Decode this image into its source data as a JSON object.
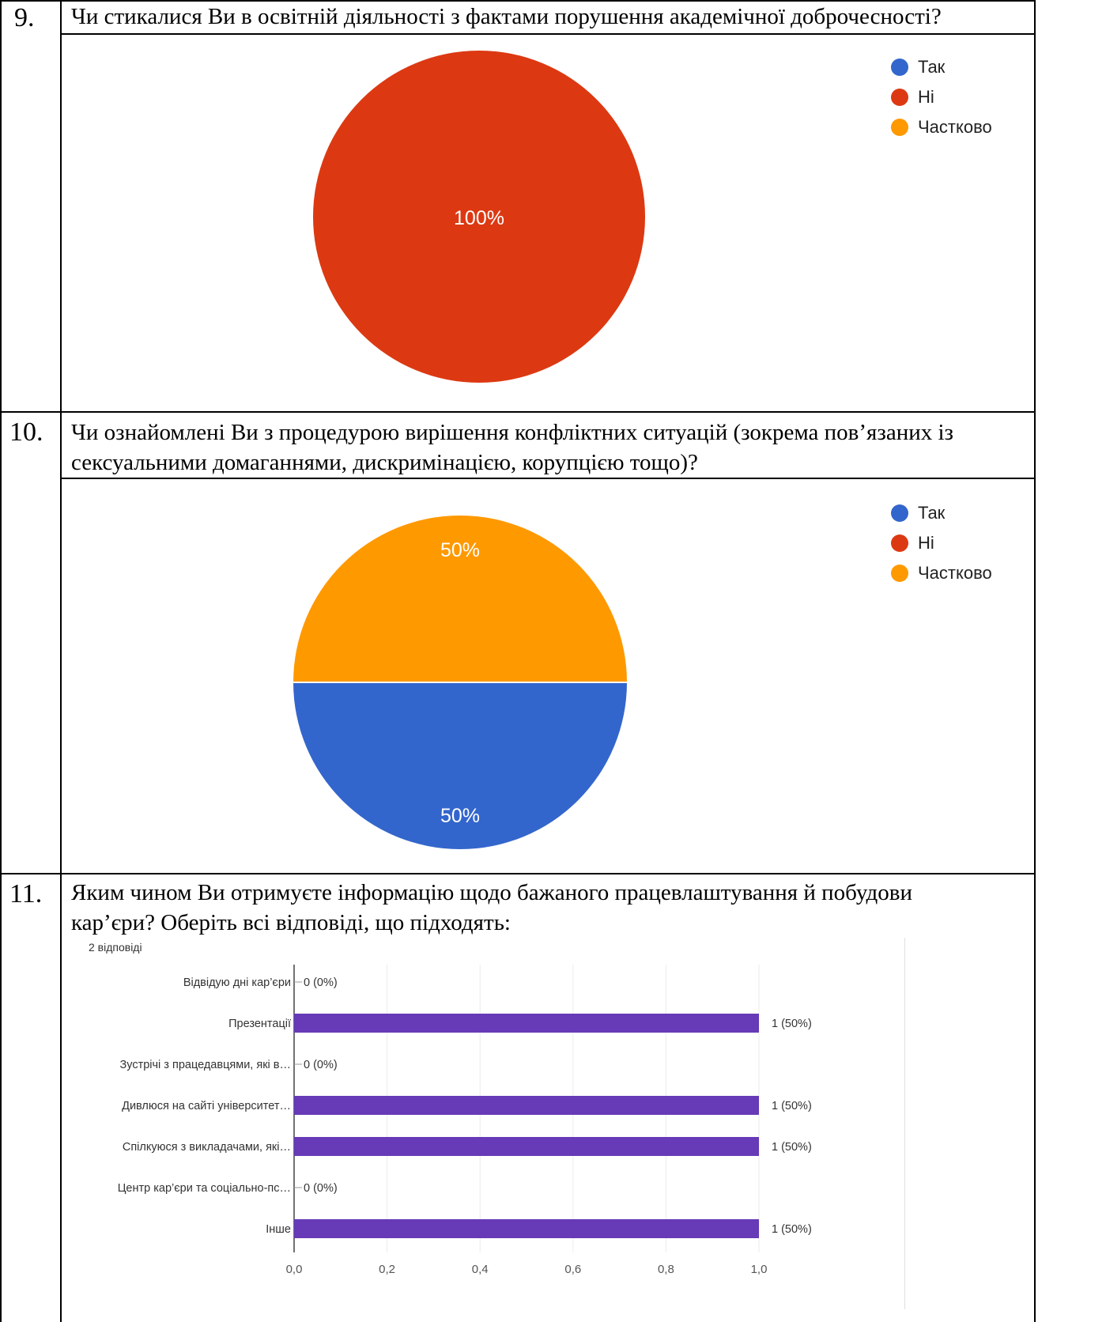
{
  "questions": [
    {
      "number": "9.",
      "text_lines": [
        "Чи стикалися Ви  в освітній діяльності з фактами порушення академічної доброчесності?"
      ]
    },
    {
      "number": "10.",
      "text_lines": [
        "Чи ознайомлені Ви з процедурою вирішення конфліктних ситуацій (зокрема пов’язаних із",
        "сексуальними домаганнями, дискримінацією, корупцією тощо)?"
      ]
    },
    {
      "number": "11.",
      "text_lines": [
        "Яким чином Ви отримуєте інформацію щодо бажаного працевлаштування й побудови",
        "кар’єри? Оберіть всі відповіді, що підходять:"
      ],
      "responses_label": "2 відповіді"
    }
  ],
  "colors": {
    "yes": "#3366cc",
    "no": "#dc3912",
    "partial": "#ff9900",
    "bar": "#673ab7"
  },
  "chart_data": [
    {
      "type": "pie",
      "slices": [
        {
          "label": "Так",
          "value": 0,
          "color": "#3366cc"
        },
        {
          "label": "Ні",
          "value": 100,
          "color": "#dc3912"
        },
        {
          "label": "Частково",
          "value": 0,
          "color": "#ff9900"
        }
      ],
      "data_labels": [
        "100%"
      ],
      "legend": [
        "Так",
        "Ні",
        "Частково"
      ],
      "legend_position": "right"
    },
    {
      "type": "pie",
      "slices": [
        {
          "label": "Так",
          "value": 50,
          "color": "#3366cc"
        },
        {
          "label": "Ні",
          "value": 0,
          "color": "#dc3912"
        },
        {
          "label": "Частково",
          "value": 50,
          "color": "#ff9900"
        }
      ],
      "data_labels": [
        "50%",
        "50%"
      ],
      "legend": [
        "Так",
        "Ні",
        "Частково"
      ],
      "legend_position": "right"
    },
    {
      "type": "bar",
      "orientation": "horizontal",
      "categories": [
        "Відвідую дні кар’єри",
        "Презентації",
        "Зустрічі з працедавцями, які в…",
        "Дивлюся на сайті університет…",
        "Спілкуюся з викладачами, які…",
        "Центр кар’єри та соціально-пс…",
        "Інше"
      ],
      "values": [
        0,
        1,
        0,
        1,
        1,
        0,
        1
      ],
      "value_labels": [
        "0 (0%)",
        "1 (50%)",
        "0 (0%)",
        "1 (50%)",
        "1 (50%)",
        "0 (0%)",
        "1 (50%)"
      ],
      "xlim": [
        0,
        1
      ],
      "x_ticks": [
        "0,0",
        "0,2",
        "0,4",
        "0,6",
        "0,8",
        "1,0"
      ],
      "grid": true
    }
  ]
}
